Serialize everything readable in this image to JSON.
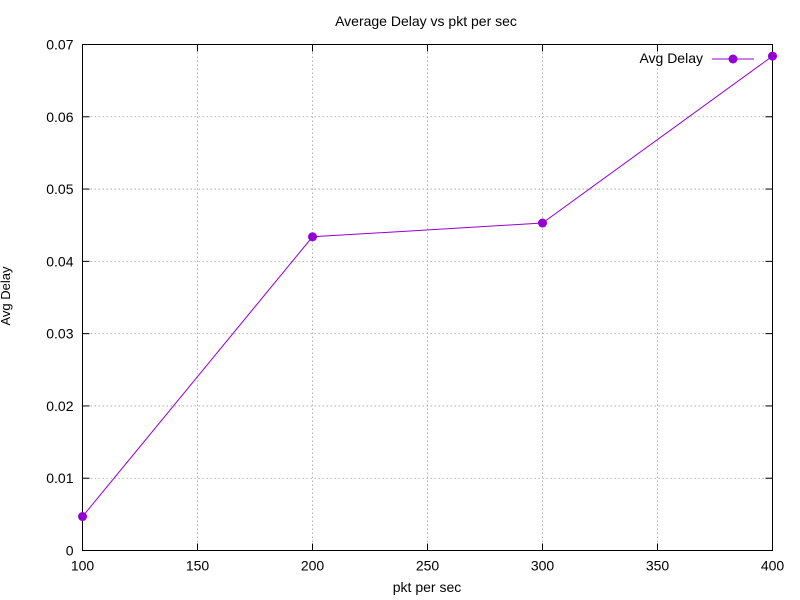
{
  "chart_data": {
    "type": "line",
    "title": "Average Delay vs pkt per sec",
    "xlabel": "pkt per sec",
    "ylabel": "Avg Delay",
    "xlim": [
      100,
      400
    ],
    "ylim": [
      0,
      0.07
    ],
    "x_ticks": [
      "100",
      "150",
      "200",
      "250",
      "300",
      "350",
      "400"
    ],
    "y_ticks": [
      "0",
      "0.01",
      "0.02",
      "0.03",
      "0.04",
      "0.05",
      "0.06",
      "0.07"
    ],
    "grid": true,
    "legend": "top-right",
    "series": [
      {
        "name": "Avg Delay",
        "color": "#9400d3",
        "x": [
          100,
          200,
          300,
          400
        ],
        "y": [
          0.0047,
          0.0434,
          0.0453,
          0.0684
        ]
      }
    ]
  }
}
